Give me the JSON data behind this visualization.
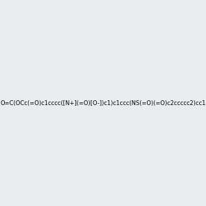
{
  "smiles": "O=C(OCc(=O)c1cccc([N+](=O)[O-])c1)c1ccc(NS(=O)(=O)c2ccccc2)cc1",
  "image_size": 300,
  "background_color": "#e8eef0",
  "title": ""
}
